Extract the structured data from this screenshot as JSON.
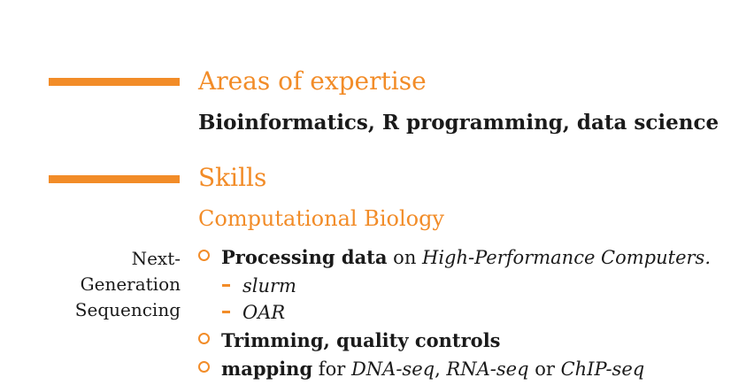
{
  "colors": {
    "accent": "#f28c28",
    "text": "#1a1a1a"
  },
  "expertise_section": {
    "title": "Areas of expertise",
    "content": "Bioinformatics, R programming, data science"
  },
  "skills_section": {
    "title": "Skills",
    "subsection": "Computational Biology",
    "side_label": [
      "Next-",
      "Generation",
      "Sequencing"
    ],
    "items": [
      {
        "bold": "Processing data",
        "text": " on ",
        "italic": "High-Performance Computers.",
        "subitems": [
          "slurm",
          "OAR"
        ]
      },
      {
        "bold": "Trimming, quality controls"
      },
      {
        "bold": "mapping",
        "text": " for ",
        "italic1": "DNA-seq",
        "sep1": ", ",
        "italic2": "RNA-seq",
        "sep2": " or ",
        "italic3": "ChIP-seq"
      }
    ]
  }
}
